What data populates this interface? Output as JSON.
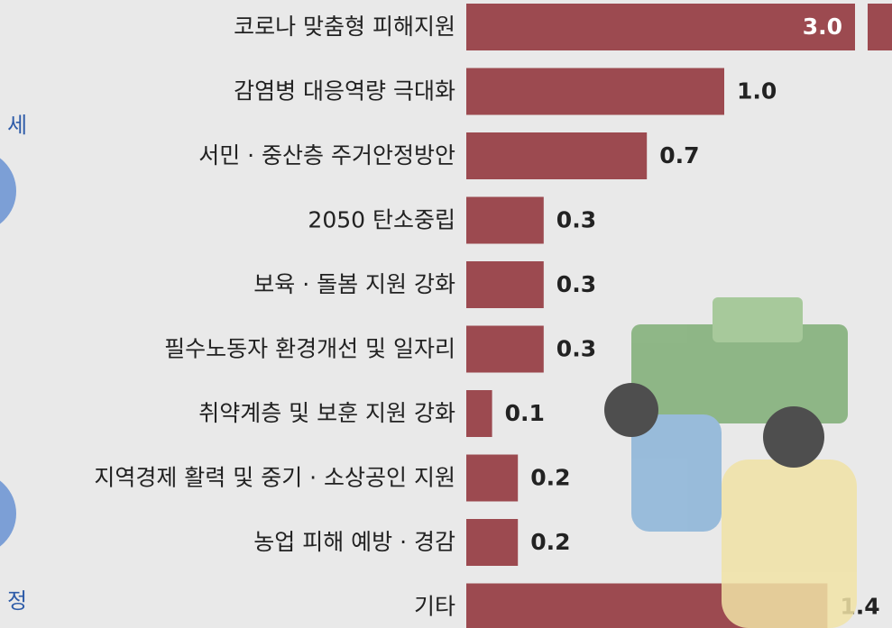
{
  "chart_data": {
    "type": "bar",
    "orientation": "horizontal",
    "categories": [
      "코로나 맞춤형 피해지원",
      "감염병 대응역량 극대화",
      "서민 · 중산층 주거안정방안",
      "2050 탄소중립",
      "보육 · 돌봄 지원 강화",
      "필수노동자 환경개선 및 일자리",
      "취약계층 및 보훈 지원 강화",
      "지역경제 활력 및 중기 · 소상공인 지원",
      "농업 피해 예방 · 경감",
      "기타"
    ],
    "values": [
      3.0,
      1.0,
      0.7,
      0.3,
      0.3,
      0.3,
      0.1,
      0.2,
      0.2,
      1.4
    ],
    "value_labels": [
      "3.0",
      "1.0",
      "0.7",
      "0.3",
      "0.3",
      "0.3",
      "0.1",
      "0.2",
      "0.2",
      "1.4"
    ],
    "color": "#9c4a50",
    "annotations": [
      "세",
      "정"
    ]
  }
}
